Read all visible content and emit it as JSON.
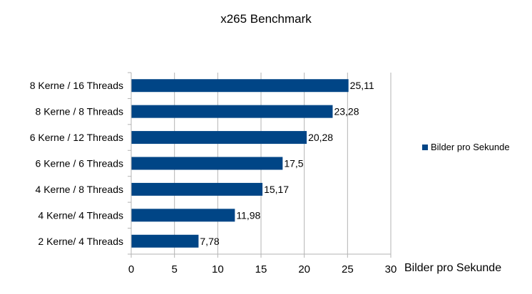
{
  "chart_data": {
    "type": "bar",
    "orientation": "horizontal",
    "title": "x265 Benchmark",
    "xlabel": "Bilder pro Sekunde",
    "ylabel": "",
    "categories": [
      "8 Kerne / 16 Threads",
      "8 Kerne / 8 Threads",
      "6 Kerne / 12 Threads",
      "6 Kerne / 6 Threads",
      "4 Kerne / 8 Threads",
      "4 Kerne/ 4 Threads",
      "2 Kerne/ 4 Threads"
    ],
    "series": [
      {
        "name": "Bilder pro Sekunde",
        "values": [
          25.11,
          23.28,
          20.28,
          17.5,
          15.17,
          11.98,
          7.78
        ],
        "labels": [
          "25,11",
          "23,28",
          "20,28",
          "17,5",
          "15,17",
          "11,98",
          "7,78"
        ]
      }
    ],
    "xlim": [
      0,
      30
    ],
    "xticks": [
      0,
      5,
      10,
      15,
      20,
      25,
      30
    ],
    "grid": "vertical",
    "legend": "right",
    "colors": {
      "bar": "#004586",
      "grid": "#b3b3b3",
      "axis": "#b3b3b3"
    }
  }
}
